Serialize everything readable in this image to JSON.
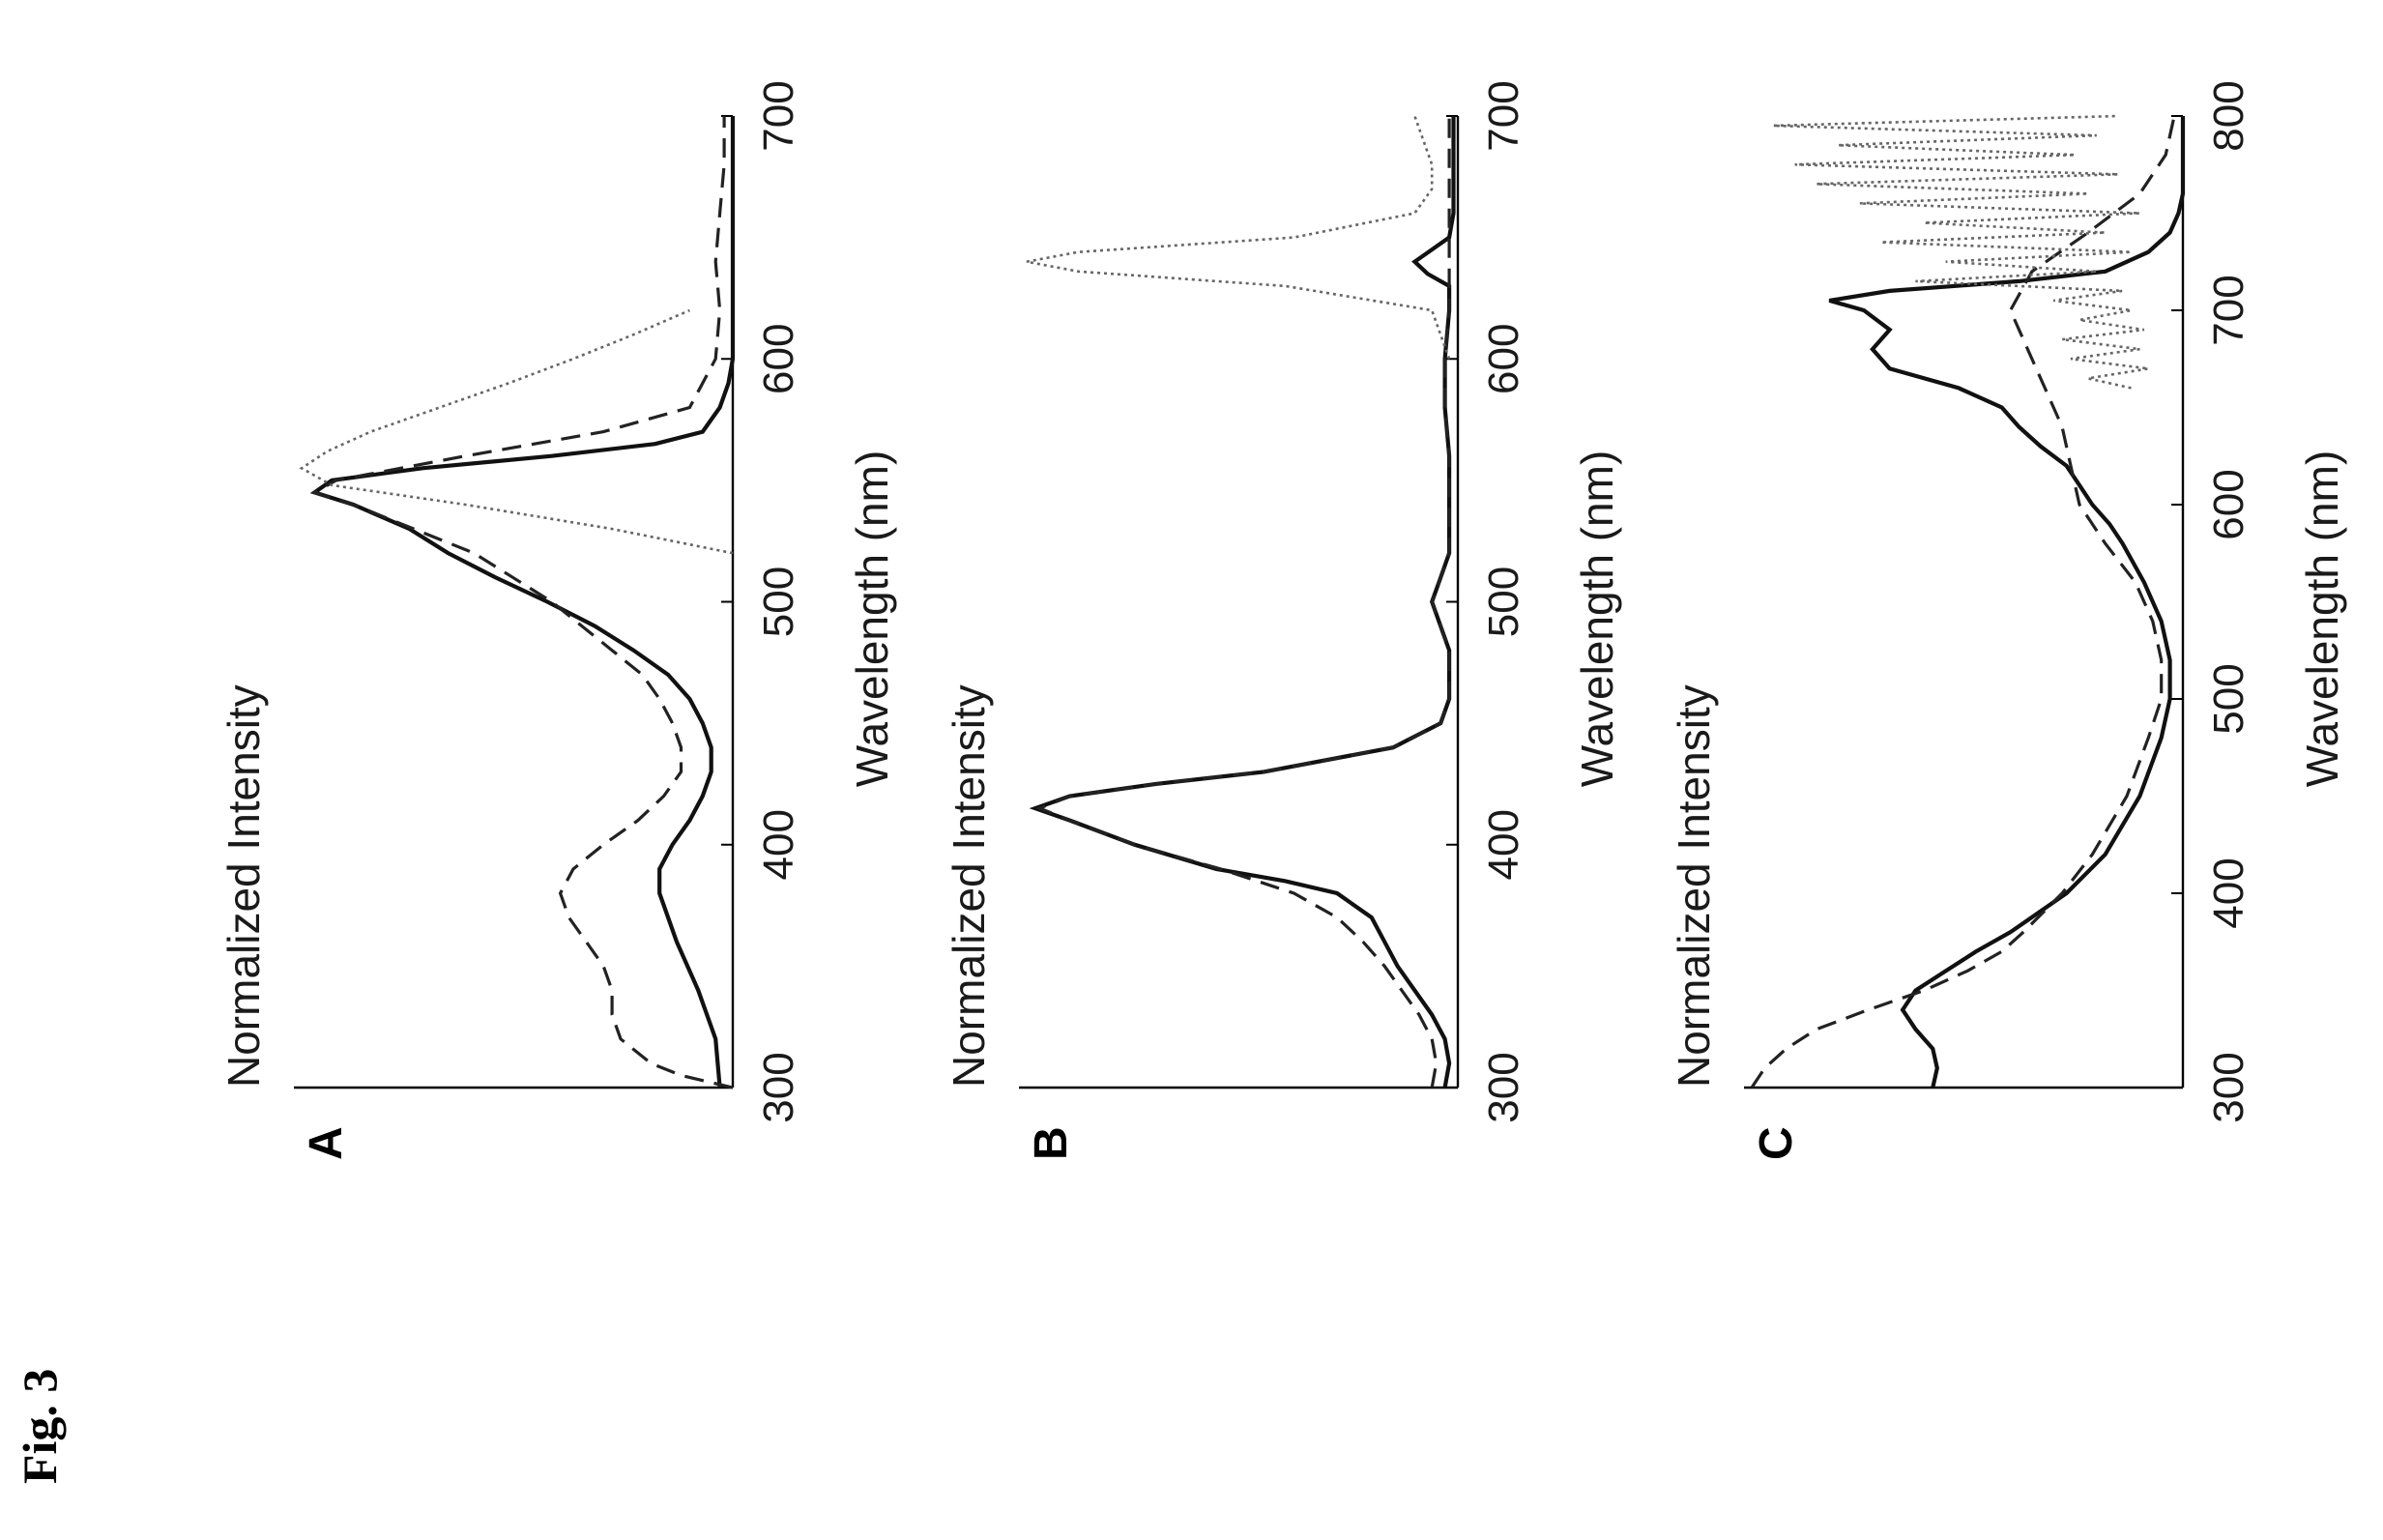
{
  "figure_label": "Fig. 3",
  "chart_data": [
    {
      "type": "line",
      "panel": "A",
      "xlabel": "Wavelength (nm)",
      "ylabel": "Normalized Intensity",
      "xlim": [
        300,
        700
      ],
      "ylim": [
        0,
        1
      ],
      "xticks": [
        300,
        400,
        500,
        600,
        700
      ],
      "series": [
        {
          "style": "solid",
          "x": [
            300,
            320,
            340,
            360,
            380,
            390,
            400,
            410,
            420,
            430,
            440,
            450,
            460,
            470,
            480,
            490,
            500,
            510,
            520,
            530,
            540,
            545,
            550,
            555,
            560,
            565,
            570,
            580,
            590,
            600,
            650,
            700
          ],
          "y": [
            0.03,
            0.04,
            0.08,
            0.13,
            0.17,
            0.17,
            0.14,
            0.1,
            0.07,
            0.05,
            0.05,
            0.07,
            0.1,
            0.15,
            0.23,
            0.32,
            0.43,
            0.55,
            0.66,
            0.75,
            0.88,
            0.97,
            0.93,
            0.72,
            0.42,
            0.18,
            0.07,
            0.03,
            0.01,
            0.0,
            0.0,
            0.0
          ]
        },
        {
          "style": "dashed",
          "x": [
            300,
            305,
            310,
            320,
            330,
            340,
            350,
            360,
            370,
            380,
            390,
            400,
            410,
            420,
            430,
            440,
            450,
            460,
            470,
            480,
            490,
            500,
            520,
            540,
            545,
            550,
            560,
            570,
            580,
            600,
            620,
            640,
            660,
            680,
            700
          ],
          "y": [
            0.0,
            0.12,
            0.19,
            0.26,
            0.28,
            0.28,
            0.3,
            0.34,
            0.38,
            0.4,
            0.37,
            0.3,
            0.22,
            0.16,
            0.12,
            0.12,
            0.14,
            0.17,
            0.21,
            0.28,
            0.35,
            0.42,
            0.6,
            0.88,
            0.97,
            0.92,
            0.62,
            0.3,
            0.1,
            0.04,
            0.03,
            0.04,
            0.03,
            0.02,
            0.02
          ]
        },
        {
          "style": "dotted",
          "x": [
            520,
            530,
            540,
            548,
            555,
            562,
            570,
            580,
            590,
            600,
            610,
            620
          ],
          "y": [
            0.0,
            0.28,
            0.62,
            0.93,
            1.0,
            0.94,
            0.84,
            0.68,
            0.52,
            0.37,
            0.23,
            0.1
          ]
        }
      ]
    },
    {
      "type": "line",
      "panel": "B",
      "xlabel": "Wavelength (nm)",
      "ylabel": "Normalized Intensity",
      "xlim": [
        300,
        700
      ],
      "ylim": [
        0,
        1
      ],
      "xticks": [
        300,
        400,
        500,
        600,
        700
      ],
      "series": [
        {
          "style": "solid",
          "x": [
            300,
            310,
            320,
            330,
            340,
            350,
            360,
            370,
            380,
            385,
            390,
            400,
            410,
            415,
            420,
            425,
            430,
            440,
            450,
            460,
            480,
            500,
            510,
            520,
            540,
            560,
            580,
            600,
            620,
            630,
            635,
            640,
            645,
            650,
            660,
            680,
            700
          ],
          "y": [
            0.03,
            0.02,
            0.03,
            0.06,
            0.1,
            0.14,
            0.17,
            0.2,
            0.28,
            0.4,
            0.56,
            0.75,
            0.9,
            0.98,
            0.9,
            0.7,
            0.45,
            0.15,
            0.04,
            0.02,
            0.02,
            0.06,
            0.04,
            0.02,
            0.02,
            0.02,
            0.03,
            0.03,
            0.02,
            0.02,
            0.07,
            0.1,
            0.06,
            0.02,
            0.01,
            0.01,
            0.01
          ]
        },
        {
          "style": "dashed",
          "x": [
            300,
            310,
            320,
            330,
            340,
            350,
            360,
            370,
            380,
            390,
            400,
            410,
            415,
            420,
            425,
            430,
            440,
            450,
            460,
            480,
            500,
            510,
            520,
            540,
            560,
            580,
            600,
            620,
            700
          ],
          "y": [
            0.06,
            0.05,
            0.06,
            0.09,
            0.13,
            0.17,
            0.22,
            0.28,
            0.38,
            0.55,
            0.75,
            0.9,
            0.97,
            0.9,
            0.7,
            0.45,
            0.15,
            0.04,
            0.02,
            0.02,
            0.06,
            0.04,
            0.02,
            0.02,
            0.02,
            0.03,
            0.03,
            0.02,
            0.02
          ]
        },
        {
          "style": "dotted",
          "x": [
            600,
            620,
            630,
            636,
            640,
            644,
            650,
            660,
            670,
            680,
            690,
            700
          ],
          "y": [
            0.02,
            0.06,
            0.4,
            0.88,
            1.0,
            0.88,
            0.38,
            0.1,
            0.06,
            0.06,
            0.08,
            0.1
          ]
        }
      ]
    },
    {
      "type": "line",
      "panel": "C",
      "xlabel": "Wavelength (nm)",
      "ylabel": "Normalized Intensity",
      "xlim": [
        300,
        800
      ],
      "ylim": [
        0,
        1
      ],
      "xticks": [
        300,
        400,
        500,
        600,
        700,
        800
      ],
      "series": [
        {
          "style": "solid",
          "x": [
            300,
            310,
            320,
            330,
            340,
            350,
            360,
            370,
            380,
            400,
            420,
            450,
            480,
            500,
            520,
            540,
            560,
            580,
            590,
            600,
            610,
            620,
            630,
            640,
            650,
            660,
            670,
            680,
            690,
            700,
            705,
            710,
            715,
            720,
            730,
            740,
            750,
            760,
            780,
            800
          ],
          "y": [
            0.58,
            0.57,
            0.58,
            0.62,
            0.65,
            0.62,
            0.55,
            0.48,
            0.4,
            0.27,
            0.18,
            0.1,
            0.05,
            0.03,
            0.03,
            0.05,
            0.09,
            0.14,
            0.17,
            0.21,
            0.24,
            0.27,
            0.33,
            0.38,
            0.42,
            0.52,
            0.68,
            0.72,
            0.68,
            0.74,
            0.82,
            0.68,
            0.38,
            0.18,
            0.08,
            0.03,
            0.01,
            0.0,
            0.0,
            0.0
          ]
        },
        {
          "style": "dashed",
          "x": [
            300,
            310,
            320,
            330,
            340,
            350,
            360,
            370,
            380,
            400,
            420,
            450,
            480,
            500,
            520,
            540,
            560,
            580,
            600,
            620,
            640,
            660,
            680,
            700,
            720,
            740,
            760,
            780,
            800
          ],
          "y": [
            1.0,
            0.97,
            0.92,
            0.85,
            0.73,
            0.6,
            0.5,
            0.42,
            0.37,
            0.28,
            0.21,
            0.13,
            0.08,
            0.05,
            0.05,
            0.07,
            0.11,
            0.18,
            0.24,
            0.26,
            0.28,
            0.32,
            0.36,
            0.4,
            0.35,
            0.22,
            0.1,
            0.04,
            0.02
          ]
        },
        {
          "style": "dotted",
          "x": [
            660,
            665,
            670,
            675,
            680,
            685,
            690,
            695,
            700,
            705,
            710,
            715,
            720,
            725,
            730,
            735,
            740,
            745,
            750,
            755,
            760,
            765,
            770,
            775,
            780,
            785,
            790,
            795,
            800
          ],
          "y": [
            0.12,
            0.22,
            0.08,
            0.26,
            0.1,
            0.28,
            0.09,
            0.24,
            0.12,
            0.3,
            0.14,
            0.62,
            0.2,
            0.55,
            0.12,
            0.7,
            0.18,
            0.6,
            0.1,
            0.75,
            0.22,
            0.85,
            0.15,
            0.9,
            0.25,
            0.8,
            0.2,
            0.95,
            0.15
          ]
        }
      ]
    }
  ]
}
